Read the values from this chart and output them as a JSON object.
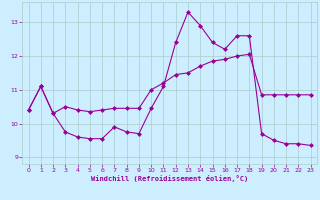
{
  "title": "",
  "xlabel": "Windchill (Refroidissement éolien,°C)",
  "ylabel": "",
  "bg_color": "#cceeff",
  "line_color": "#990099",
  "grid_color": "#aacccc",
  "xlim": [
    -0.5,
    23.5
  ],
  "ylim": [
    8.8,
    13.6
  ],
  "yticks": [
    9,
    10,
    11,
    12,
    13
  ],
  "xticks": [
    0,
    1,
    2,
    3,
    4,
    5,
    6,
    7,
    8,
    9,
    10,
    11,
    12,
    13,
    14,
    15,
    16,
    17,
    18,
    19,
    20,
    21,
    22,
    23
  ],
  "line1_x": [
    0,
    1,
    2,
    3,
    4,
    5,
    6,
    7,
    8,
    9,
    10,
    11,
    12,
    13,
    14,
    15,
    16,
    17,
    18,
    19,
    20,
    21,
    22,
    23
  ],
  "line1_y": [
    10.4,
    11.1,
    10.3,
    10.5,
    10.4,
    10.35,
    10.4,
    10.45,
    10.45,
    10.45,
    11.0,
    11.2,
    11.45,
    11.5,
    11.7,
    11.85,
    11.9,
    12.0,
    12.05,
    10.85,
    10.85,
    10.85,
    10.85,
    10.85
  ],
  "line2_x": [
    0,
    1,
    2,
    3,
    4,
    5,
    6,
    7,
    8,
    9,
    10,
    11,
    12,
    13,
    14,
    15,
    16,
    17,
    18,
    19,
    20,
    21,
    22,
    23
  ],
  "line2_y": [
    10.4,
    11.1,
    10.3,
    9.75,
    9.6,
    9.55,
    9.55,
    9.9,
    9.75,
    9.7,
    10.45,
    11.1,
    12.4,
    13.3,
    12.9,
    12.4,
    12.2,
    12.6,
    12.6,
    9.7,
    9.5,
    9.4,
    9.4,
    9.35
  ],
  "marker": "D",
  "markersize": 2.0,
  "linewidth": 0.8,
  "tick_fontsize": 4.5,
  "xlabel_fontsize": 5.0
}
